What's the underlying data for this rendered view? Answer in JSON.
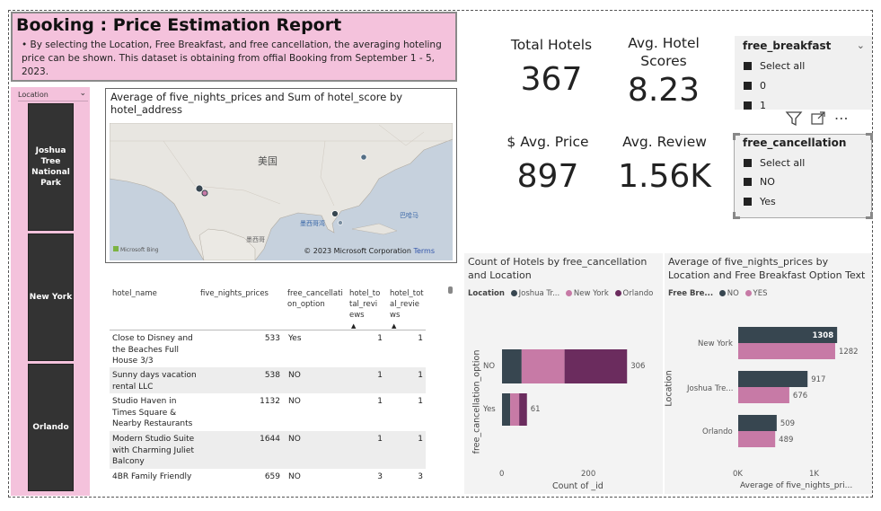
{
  "header": {
    "title": "Booking : Price Estimation Report",
    "description": "• By selecting the Location, Free Breakfast, and free cancellation, the averaging hoteling price can be shown. This dataset is obtaining from offial Booking from September 1 - 5, 2023."
  },
  "location_slicer": {
    "label": "Location",
    "tiles": [
      "Joshua Tree National Park",
      "New York",
      "Orlando"
    ]
  },
  "map": {
    "title": "Average of five_nights_prices and Sum of hotel_score by hotel_address",
    "country_label": "美国",
    "mexico_label": "墨西哥",
    "gulf_label": "墨西哥湾",
    "bahamas_label": "巴哈马",
    "bing_label": "Microsoft Bing",
    "copyright": "© 2023 Microsoft Corporation",
    "terms": "Terms"
  },
  "table": {
    "columns": [
      "hotel_name",
      "five_nights_prices",
      "free_cancellation_option",
      "hotel_total_reviews",
      "hotel_total_reviews"
    ],
    "rows": [
      {
        "name": "Close to Disney and the Beaches Full House 3/3",
        "price": "533",
        "cancel": "Yes",
        "r1": "1",
        "r2": "1"
      },
      {
        "name": "Sunny days vacation rental LLC",
        "price": "538",
        "cancel": "NO",
        "r1": "1",
        "r2": "1"
      },
      {
        "name": "Studio Haven in Times Square & Nearby Restaurants",
        "price": "1132",
        "cancel": "NO",
        "r1": "1",
        "r2": "1"
      },
      {
        "name": "Modern Studio Suite with Charming Juliet Balcony",
        "price": "1644",
        "cancel": "NO",
        "r1": "1",
        "r2": "1"
      },
      {
        "name": "4BR Family Friendly",
        "price": "659",
        "cancel": "NO",
        "r1": "3",
        "r2": "3"
      }
    ]
  },
  "kpis": {
    "total_hotels_label": "Total Hotels",
    "total_hotels_value": "367",
    "avg_score_label": "Avg. Hotel Scores",
    "avg_score_value": "8.23",
    "avg_price_label": "$ Avg. Price",
    "avg_price_value": "897",
    "avg_review_label": "Avg. Review",
    "avg_review_value": "1.56K"
  },
  "slicers": {
    "breakfast": {
      "title": "free_breakfast",
      "options": [
        "Select all",
        "0",
        "1"
      ]
    },
    "cancellation": {
      "title": "free_cancellation",
      "options": [
        "Select all",
        "NO",
        "Yes"
      ]
    }
  },
  "colors": {
    "joshua": "#374650",
    "newyork": "#c77aa6",
    "orlando": "#6b2c5e",
    "no": "#374650",
    "yes": "#c77aa6"
  },
  "chart_data": [
    {
      "type": "bar",
      "orientation": "horizontal-stacked",
      "title": "Count of Hotels by free_cancellation and Location",
      "legend_title": "Location",
      "xlabel": "Count of _id",
      "ylabel": "free_cancellation_option",
      "categories": [
        "NO",
        "Yes"
      ],
      "series": [
        {
          "name": "Joshua Tr...",
          "values": [
            48,
            20
          ]
        },
        {
          "name": "New York",
          "values": [
            105,
            22
          ]
        },
        {
          "name": "Orlando",
          "values": [
            153,
            19
          ]
        }
      ],
      "totals": [
        "306",
        "61"
      ],
      "xticks": [
        "0",
        "200"
      ],
      "xlim": [
        0,
        400
      ]
    },
    {
      "type": "bar",
      "orientation": "horizontal-grouped",
      "title": "Average of five_nights_prices by Location and Free Breakfast Option Text",
      "legend_title": "Free Bre...",
      "xlabel": "Average of five_nights_pri...",
      "ylabel": "Location",
      "categories": [
        "New York",
        "Joshua Tre...",
        "Orlando"
      ],
      "series": [
        {
          "name": "NO",
          "values": [
            1308,
            917,
            509
          ]
        },
        {
          "name": "YES",
          "values": [
            1282,
            676,
            489
          ]
        }
      ],
      "xticks": [
        "0K",
        "1K"
      ],
      "xlim": [
        0,
        1900
      ]
    }
  ]
}
